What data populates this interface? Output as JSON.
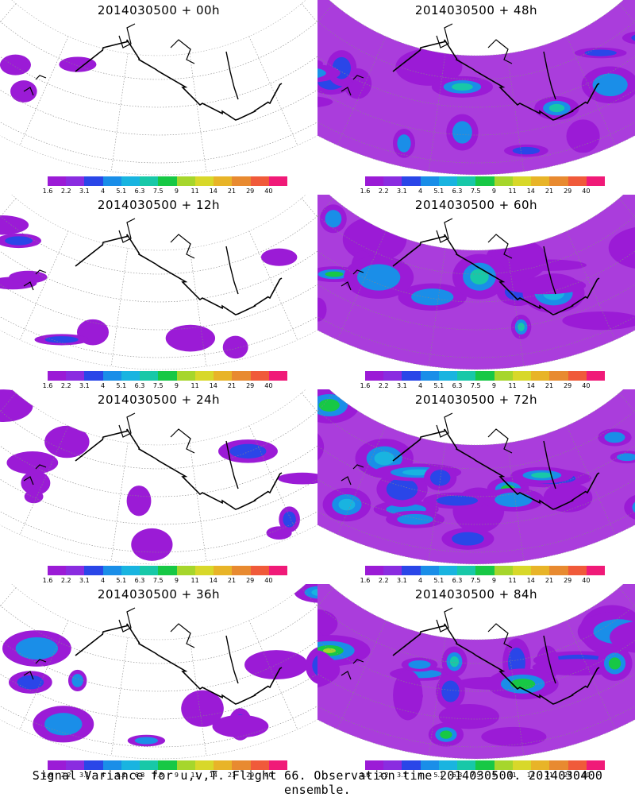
{
  "panels": [
    {
      "title": "2014030500 + 00h",
      "intensity": 0
    },
    {
      "title": "2014030500 + 48h",
      "intensity": 2
    },
    {
      "title": "2014030500 + 12h",
      "intensity": 0.6
    },
    {
      "title": "2014030500 + 60h",
      "intensity": 2.4
    },
    {
      "title": "2014030500 + 24h",
      "intensity": 1
    },
    {
      "title": "2014030500 + 72h",
      "intensity": 2.8
    },
    {
      "title": "2014030500 + 36h",
      "intensity": 1.5
    },
    {
      "title": "2014030500 + 84h",
      "intensity": 3.2
    }
  ],
  "colorbar": {
    "colors": [
      "#9b1bd6",
      "#8a2ce0",
      "#2a46e8",
      "#1a8ee8",
      "#19b4e0",
      "#18c8a8",
      "#17c845",
      "#a6d62c",
      "#d8d82a",
      "#e8b428",
      "#e88a30",
      "#f05a3a",
      "#f01a78"
    ],
    "labels": [
      "1.6",
      "2.2",
      "3.1",
      "4",
      "5.1",
      "6.3",
      "7.5",
      "9",
      "11",
      "14",
      "21",
      "29",
      "40"
    ]
  },
  "footer": "Signal Variance for u,v,T. Flight 66. Observation time 2014030500. 2014030400 ensemble."
}
